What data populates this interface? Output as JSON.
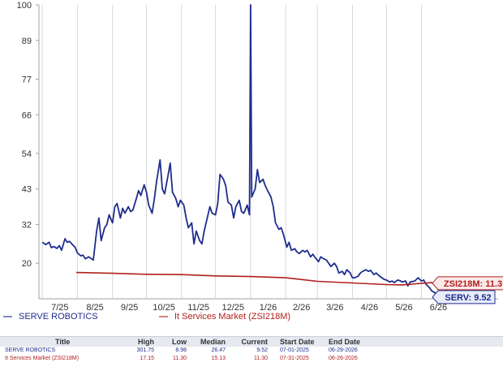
{
  "chart_data": {
    "type": "line",
    "y_ticks": [
      20,
      32,
      43,
      54,
      66,
      77,
      89,
      100
    ],
    "ylim": [
      9,
      100
    ],
    "x_ticks": [
      "7/25",
      "8/25",
      "9/25",
      "10/25",
      "11/25",
      "12/25",
      "1/26",
      "2/26",
      "3/26",
      "4/26",
      "5/26",
      "6/26"
    ],
    "xlim": [
      "2025-06-28",
      "2026-06-30"
    ],
    "grid": "vertical",
    "series": [
      {
        "name": "SERVE ROBOTICS",
        "color": "#1e2d8c",
        "points": [
          [
            "2025-07-01",
            26.5
          ],
          [
            "2025-07-04",
            25.8
          ],
          [
            "2025-07-07",
            26.5
          ],
          [
            "2025-07-09",
            24.8
          ],
          [
            "2025-07-11",
            25.2
          ],
          [
            "2025-07-14",
            24.6
          ],
          [
            "2025-07-16",
            25.5
          ],
          [
            "2025-07-18",
            24.0
          ],
          [
            "2025-07-21",
            27.6
          ],
          [
            "2025-07-23",
            26.5
          ],
          [
            "2025-07-25",
            26.8
          ],
          [
            "2025-07-28",
            25.6
          ],
          [
            "2025-07-30",
            25.0
          ],
          [
            "2025-08-01",
            23.2
          ],
          [
            "2025-08-04",
            22.3
          ],
          [
            "2025-08-06",
            22.5
          ],
          [
            "2025-08-08",
            21.4
          ],
          [
            "2025-08-11",
            22.0
          ],
          [
            "2025-08-13",
            21.5
          ],
          [
            "2025-08-15",
            21.0
          ],
          [
            "2025-08-18",
            30.0
          ],
          [
            "2025-08-20",
            34.0
          ],
          [
            "2025-08-22",
            27.0
          ],
          [
            "2025-08-25",
            31.0
          ],
          [
            "2025-08-27",
            32.0
          ],
          [
            "2025-08-29",
            35.0
          ],
          [
            "2025-09-01",
            32.5
          ],
          [
            "2025-09-03",
            37.5
          ],
          [
            "2025-09-05",
            38.5
          ],
          [
            "2025-09-08",
            34.0
          ],
          [
            "2025-09-10",
            37.0
          ],
          [
            "2025-09-12",
            35.5
          ],
          [
            "2025-09-15",
            37.5
          ],
          [
            "2025-09-17",
            36.0
          ],
          [
            "2025-09-19",
            36.5
          ],
          [
            "2025-09-22",
            40.0
          ],
          [
            "2025-09-24",
            42.5
          ],
          [
            "2025-09-26",
            41.0
          ],
          [
            "2025-09-29",
            44.3
          ],
          [
            "2025-10-01",
            42.0
          ],
          [
            "2025-10-03",
            38.0
          ],
          [
            "2025-10-06",
            35.5
          ],
          [
            "2025-10-08",
            40.0
          ],
          [
            "2025-10-10",
            45.5
          ],
          [
            "2025-10-13",
            52.0
          ],
          [
            "2025-10-15",
            43.0
          ],
          [
            "2025-10-17",
            41.5
          ],
          [
            "2025-10-20",
            47.0
          ],
          [
            "2025-10-22",
            51.0
          ],
          [
            "2025-10-24",
            42.0
          ],
          [
            "2025-10-27",
            40.0
          ],
          [
            "2025-10-29",
            37.5
          ],
          [
            "2025-10-31",
            39.5
          ],
          [
            "2025-11-03",
            38.0
          ],
          [
            "2025-11-05",
            34.0
          ],
          [
            "2025-11-07",
            31.0
          ],
          [
            "2025-11-10",
            32.5
          ],
          [
            "2025-11-12",
            26.0
          ],
          [
            "2025-11-14",
            30.0
          ],
          [
            "2025-11-17",
            27.0
          ],
          [
            "2025-11-19",
            26.0
          ],
          [
            "2025-11-21",
            30.0
          ],
          [
            "2025-11-24",
            34.5
          ],
          [
            "2025-11-26",
            37.5
          ],
          [
            "2025-11-28",
            35.5
          ],
          [
            "2025-12-01",
            35.0
          ],
          [
            "2025-12-03",
            38.5
          ],
          [
            "2025-12-05",
            47.5
          ],
          [
            "2025-12-08",
            46.0
          ],
          [
            "2025-12-10",
            44.0
          ],
          [
            "2025-12-12",
            39.0
          ],
          [
            "2025-12-15",
            38.0
          ],
          [
            "2025-12-17",
            34.0
          ],
          [
            "2025-12-19",
            37.5
          ],
          [
            "2025-12-22",
            39.5
          ],
          [
            "2025-12-24",
            36.0
          ],
          [
            "2025-12-26",
            35.5
          ],
          [
            "2025-12-29",
            38.0
          ],
          [
            "2025-12-31",
            35.0
          ],
          [
            "2026-01-01",
            100.0
          ],
          [
            "2026-01-02",
            40.5
          ],
          [
            "2026-01-05",
            43.0
          ],
          [
            "2026-01-07",
            49.0
          ],
          [
            "2026-01-09",
            45.0
          ],
          [
            "2026-01-12",
            46.0
          ],
          [
            "2026-01-14",
            44.0
          ],
          [
            "2026-01-16",
            42.5
          ],
          [
            "2026-01-19",
            40.5
          ],
          [
            "2026-01-21",
            37.5
          ],
          [
            "2026-01-23",
            32.5
          ],
          [
            "2026-01-26",
            30.5
          ],
          [
            "2026-01-28",
            31.0
          ],
          [
            "2026-01-30",
            29.0
          ],
          [
            "2026-02-02",
            25.0
          ],
          [
            "2026-02-04",
            26.5
          ],
          [
            "2026-02-06",
            24.0
          ],
          [
            "2026-02-09",
            24.5
          ],
          [
            "2026-02-11",
            23.5
          ],
          [
            "2026-02-13",
            23.0
          ],
          [
            "2026-02-16",
            24.0
          ],
          [
            "2026-02-18",
            23.5
          ],
          [
            "2026-02-20",
            24.0
          ],
          [
            "2026-02-23",
            22.0
          ],
          [
            "2026-02-25",
            22.8
          ],
          [
            "2026-02-27",
            21.8
          ],
          [
            "2026-03-02",
            20.5
          ],
          [
            "2026-03-04",
            22.0
          ],
          [
            "2026-03-06",
            21.5
          ],
          [
            "2026-03-09",
            21.0
          ],
          [
            "2026-03-11",
            20.0
          ],
          [
            "2026-03-13",
            19.0
          ],
          [
            "2026-03-16",
            20.0
          ],
          [
            "2026-03-18",
            19.0
          ],
          [
            "2026-03-20",
            17.0
          ],
          [
            "2026-03-23",
            17.5
          ],
          [
            "2026-03-25",
            16.5
          ],
          [
            "2026-03-27",
            18.0
          ],
          [
            "2026-03-30",
            17.0
          ],
          [
            "2026-04-01",
            15.5
          ],
          [
            "2026-04-03",
            15.5
          ],
          [
            "2026-04-06",
            16.0
          ],
          [
            "2026-04-08",
            17.0
          ],
          [
            "2026-04-10",
            17.5
          ],
          [
            "2026-04-13",
            18.0
          ],
          [
            "2026-04-15",
            17.5
          ],
          [
            "2026-04-17",
            17.8
          ],
          [
            "2026-04-20",
            16.5
          ],
          [
            "2026-04-22",
            17.0
          ],
          [
            "2026-04-24",
            16.3
          ],
          [
            "2026-04-27",
            15.5
          ],
          [
            "2026-04-29",
            15.0
          ],
          [
            "2026-05-01",
            14.8
          ],
          [
            "2026-05-04",
            14.2
          ],
          [
            "2026-05-06",
            14.5
          ],
          [
            "2026-05-08",
            14.0
          ],
          [
            "2026-05-11",
            14.8
          ],
          [
            "2026-05-13",
            14.6
          ],
          [
            "2026-05-15",
            14.2
          ],
          [
            "2026-05-18",
            14.5
          ],
          [
            "2026-05-20",
            13.0
          ],
          [
            "2026-05-22",
            14.2
          ],
          [
            "2026-05-26",
            14.5
          ],
          [
            "2026-05-29",
            15.5
          ],
          [
            "2026-06-01",
            14.5
          ],
          [
            "2026-06-03",
            14.8
          ],
          [
            "2026-06-05",
            13.5
          ],
          [
            "2026-06-08",
            12.5
          ],
          [
            "2026-06-10",
            11.5
          ],
          [
            "2026-06-12",
            11.0
          ],
          [
            "2026-06-15",
            10.5
          ],
          [
            "2026-06-17",
            10.5
          ],
          [
            "2026-06-20",
            10.0
          ],
          [
            "2026-06-24",
            9.8
          ],
          [
            "2026-06-29",
            9.52
          ]
        ]
      },
      {
        "name": "It Services Market (ZSI218M)",
        "color": "#b0201c",
        "points": [
          [
            "2025-07-31",
            17.15
          ],
          [
            "2025-09-01",
            16.9
          ],
          [
            "2025-10-01",
            16.6
          ],
          [
            "2025-11-01",
            16.5
          ],
          [
            "2025-12-01",
            16.1
          ],
          [
            "2026-01-01",
            15.9
          ],
          [
            "2026-02-01",
            15.5
          ],
          [
            "2026-03-01",
            14.4
          ],
          [
            "2026-04-01",
            13.9
          ],
          [
            "2026-05-01",
            13.4
          ],
          [
            "2026-05-15",
            13.3
          ],
          [
            "2026-06-01",
            13.8
          ],
          [
            "2026-06-10",
            14.0
          ],
          [
            "2026-06-26",
            11.3
          ]
        ]
      }
    ],
    "end_tags": [
      {
        "series": 1,
        "label": "ZSI218M: 11.3"
      },
      {
        "series": 0,
        "label": "SERV: 9.52"
      }
    ]
  },
  "legend": {
    "items": [
      {
        "mark": "—",
        "label": "SERVE ROBOTICS",
        "color": "#1e2d8c"
      },
      {
        "mark": "—",
        "label": "It Services Market (ZSI218M)",
        "color": "#b0201c"
      }
    ]
  },
  "stats_table": {
    "headers": {
      "title": "Title",
      "high": "High",
      "low": "Low",
      "median": "Median",
      "current": "Current",
      "start": "Start Date",
      "end": "End Date"
    },
    "rows": [
      {
        "title": "SERVE ROBOTICS",
        "high": "301.75",
        "low": "8.98",
        "median": "26.47",
        "current": "9.52",
        "start": "07-01-2025",
        "end": "06-29-2026"
      },
      {
        "title": "It Services Market (ZSI218M)",
        "high": "17.15",
        "low": "11.30",
        "median": "15.13",
        "current": "11.30",
        "start": "07-31-2025",
        "end": "06-26-2026"
      }
    ]
  }
}
